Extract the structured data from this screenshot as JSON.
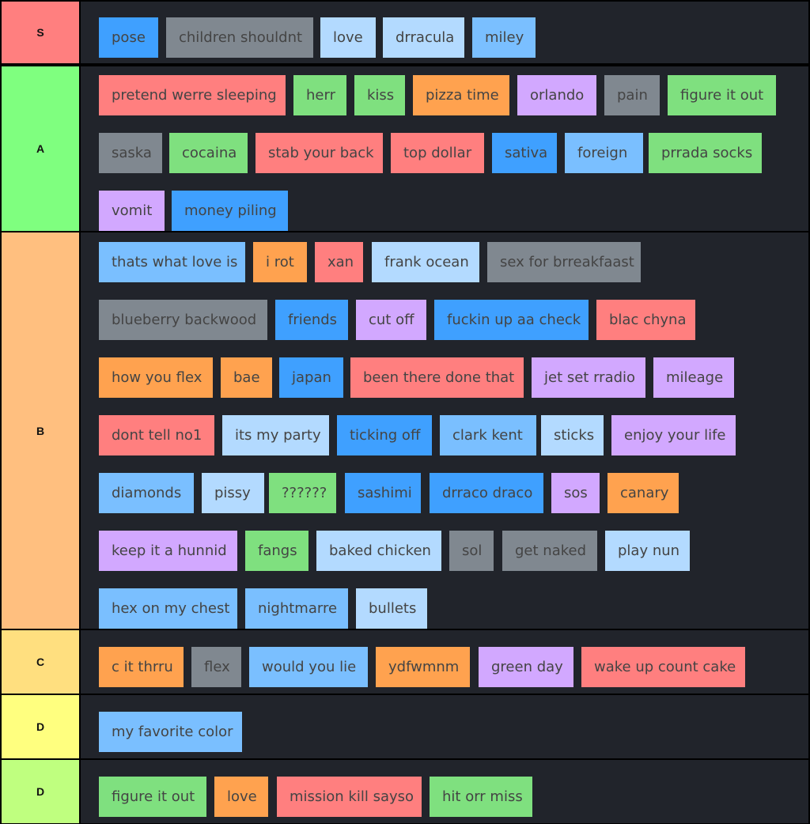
{
  "tiers": [
    {
      "label": "S",
      "color": "#ff7f7f",
      "items": [
        {
          "text": "pose",
          "color": "#3fa0ff"
        },
        {
          "text": "children shouldnt",
          "color": "#808890"
        },
        {
          "text": "love",
          "color": "#b3daff"
        },
        {
          "text": "drracula",
          "color": "#b3daff"
        },
        {
          "text": "miley",
          "color": "#7abfff"
        }
      ]
    },
    {
      "label": "A",
      "color": "#7fff7f",
      "items": [
        {
          "text": "pretend werre sleeping",
          "color": "#ff7f7f"
        },
        {
          "text": "herr",
          "color": "#7fe07f"
        },
        {
          "text": "kiss",
          "color": "#7fe07f"
        },
        {
          "text": "pizza time",
          "color": "#ffa24f"
        },
        {
          "text": "orlando",
          "color": "#d2a8ff"
        },
        {
          "text": "pain",
          "color": "#808890"
        },
        {
          "text": "figure it out",
          "color": "#7fe07f"
        },
        {
          "text": "saska",
          "color": "#808890"
        },
        {
          "text": "cocaina",
          "color": "#7fe07f"
        },
        {
          "text": "stab your back",
          "color": "#ff7f7f"
        },
        {
          "text": "top dollar",
          "color": "#ff7f7f"
        },
        {
          "text": "sativa",
          "color": "#3fa0ff"
        },
        {
          "text": "foreign",
          "color": "#7abfff"
        },
        {
          "text": "prrada socks",
          "color": "#7fe07f"
        },
        {
          "text": "vomit",
          "color": "#d2a8ff"
        },
        {
          "text": "money piling",
          "color": "#3fa0ff"
        }
      ]
    },
    {
      "label": "B",
      "color": "#ffbf7f",
      "items": [
        {
          "text": "thats what love is",
          "color": "#7abfff"
        },
        {
          "text": "i rot",
          "color": "#ffa24f"
        },
        {
          "text": "xan",
          "color": "#ff7f7f"
        },
        {
          "text": "frank ocean",
          "color": "#b3daff"
        },
        {
          "text": "sex for brreakfaast",
          "color": "#808890"
        },
        {
          "text": "blueberry backwood",
          "color": "#808890"
        },
        {
          "text": "friends",
          "color": "#3fa0ff"
        },
        {
          "text": "cut off",
          "color": "#d2a8ff"
        },
        {
          "text": "fuckin up aa check",
          "color": "#3fa0ff"
        },
        {
          "text": "blac chyna",
          "color": "#ff7f7f"
        },
        {
          "text": "how you flex",
          "color": "#ffa24f"
        },
        {
          "text": "bae",
          "color": "#ffa24f"
        },
        {
          "text": "japan",
          "color": "#3fa0ff"
        },
        {
          "text": "been there done that",
          "color": "#ff7f7f"
        },
        {
          "text": "jet set rradio",
          "color": "#d2a8ff"
        },
        {
          "text": "mileage",
          "color": "#d2a8ff"
        },
        {
          "text": "dont tell no1",
          "color": "#ff7f7f"
        },
        {
          "text": "its my party",
          "color": "#b3daff"
        },
        {
          "text": "ticking off",
          "color": "#3fa0ff"
        },
        {
          "text": "clark kent",
          "color": "#7abfff"
        },
        {
          "text": "sticks",
          "color": "#b3daff"
        },
        {
          "text": "enjoy your life",
          "color": "#d2a8ff"
        },
        {
          "text": "diamonds",
          "color": "#7abfff"
        },
        {
          "text": "pissy",
          "color": "#b3daff"
        },
        {
          "text": "??????",
          "color": "#7fe07f"
        },
        {
          "text": "sashimi",
          "color": "#3fa0ff"
        },
        {
          "text": "drraco draco",
          "color": "#3fa0ff"
        },
        {
          "text": "sos",
          "color": "#d2a8ff"
        },
        {
          "text": "canary",
          "color": "#ffa24f"
        },
        {
          "text": "keep it a hunnid",
          "color": "#d2a8ff"
        },
        {
          "text": "fangs",
          "color": "#7fe07f"
        },
        {
          "text": "baked chicken",
          "color": "#b3daff"
        },
        {
          "text": "sol",
          "color": "#808890"
        },
        {
          "text": "get naked",
          "color": "#808890"
        },
        {
          "text": "play nun",
          "color": "#b3daff"
        },
        {
          "text": "hex on my chest",
          "color": "#7abfff"
        },
        {
          "text": "nightmarre",
          "color": "#7abfff"
        },
        {
          "text": "bullets",
          "color": "#b3daff"
        }
      ]
    },
    {
      "label": "C",
      "color": "#ffdf7f",
      "items": [
        {
          "text": "c it thrru",
          "color": "#ffa24f"
        },
        {
          "text": "flex",
          "color": "#808890"
        },
        {
          "text": "would you lie",
          "color": "#7abfff"
        },
        {
          "text": "ydfwmnm",
          "color": "#ffa24f"
        },
        {
          "text": "green day",
          "color": "#d2a8ff"
        },
        {
          "text": "wake up count cake",
          "color": "#ff7f7f"
        }
      ]
    },
    {
      "label": "D",
      "color": "#ffff7f",
      "items": [
        {
          "text": "my favorite color",
          "color": "#7abfff"
        }
      ]
    },
    {
      "label": "D",
      "color": "#bfff7f",
      "items": [
        {
          "text": "figure it out",
          "color": "#7fe07f"
        },
        {
          "text": "love",
          "color": "#ffa24f"
        },
        {
          "text": "mission kill sayso",
          "color": "#ff7f7f"
        },
        {
          "text": "hit orr miss",
          "color": "#7fe07f"
        }
      ]
    }
  ]
}
